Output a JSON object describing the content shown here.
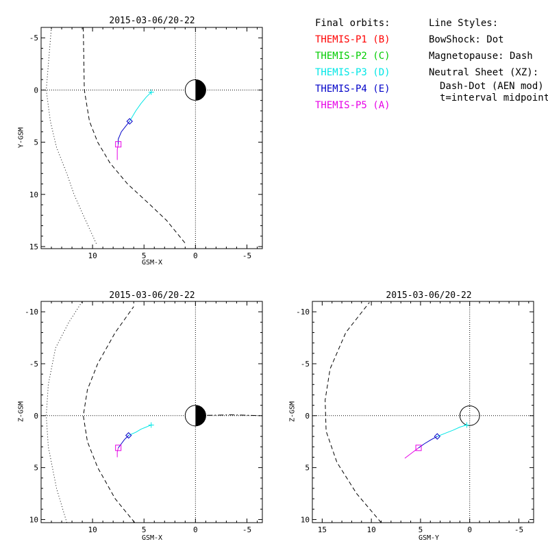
{
  "legend": {
    "orbits_title": "Final orbits:",
    "probes": [
      {
        "label": "THEMIS-P1 (B)",
        "color": "#ff0000"
      },
      {
        "label": "THEMIS-P2 (C)",
        "color": "#00cc00"
      },
      {
        "label": "THEMIS-P3 (D)",
        "color": "#00e6e6"
      },
      {
        "label": "THEMIS-P4 (E)",
        "color": "#0000c8"
      },
      {
        "label": "THEMIS-P5 (A)",
        "color": "#e600e6"
      }
    ],
    "styles_title": "Line Styles:",
    "styles": [
      "BowShock: Dot",
      "Magnetopause: Dash",
      "Neutral Sheet (XZ):"
    ],
    "styles_sub": [
      "Dash-Dot (AEN mod)",
      "t=interval midpoint"
    ]
  },
  "chart_data": [
    {
      "type": "line",
      "name": "xy",
      "title": "2015-03-06/20-22",
      "xlabel": "GSM-X",
      "ylabel": "Y-GSM",
      "xlim": [
        15,
        -6.5
      ],
      "ylim": [
        -6,
        15.2
      ],
      "xticks": [
        10,
        5,
        0,
        -5
      ],
      "yticks": [
        -5,
        0,
        5,
        10,
        15
      ],
      "grid": "dotted zero lines",
      "earth": true,
      "series": [
        {
          "color": "#00e6e6",
          "x": [
            4.3,
            4.8,
            5.3,
            5.8,
            6.4
          ],
          "y": [
            0.2,
            0.7,
            1.3,
            2.0,
            3.0
          ],
          "marker": "+",
          "marker_at": "start"
        },
        {
          "color": "#0000c8",
          "x": [
            6.4,
            6.8,
            7.2,
            7.5,
            7.5
          ],
          "y": [
            3.0,
            3.5,
            4.0,
            4.7,
            5.2
          ],
          "marker": "diamond",
          "marker_at": "start"
        },
        {
          "color": "#e600e6",
          "x": [
            7.5,
            7.6,
            7.6,
            7.6
          ],
          "y": [
            5.2,
            5.7,
            6.3,
            6.7
          ],
          "marker": "square",
          "marker_at": "start"
        }
      ],
      "boundaries": [
        {
          "style": "dash",
          "x": [
            10.9,
            10.8,
            10.3,
            9.5,
            8.3,
            6.6,
            4.4,
            2.8,
            0.9
          ],
          "y": [
            -6,
            0,
            3,
            5,
            7,
            9,
            11,
            12.5,
            14.8
          ]
        },
        {
          "style": "dot",
          "x": [
            14.0,
            14.5,
            14.1,
            13.5,
            12.5,
            11.8,
            10.9,
            9.6
          ],
          "y": [
            -6,
            0,
            3,
            5.5,
            8,
            10,
            12,
            14.8
          ]
        }
      ]
    },
    {
      "type": "line",
      "name": "xz",
      "title": "2015-03-06/20-22",
      "xlabel": "GSM-X",
      "ylabel": "Z-GSM",
      "xlim": [
        15,
        -6.5
      ],
      "ylim": [
        -11,
        10.3
      ],
      "xticks": [
        10,
        5,
        0,
        -5
      ],
      "yticks": [
        10,
        5,
        0,
        -5,
        -10
      ],
      "grid": "dotted zero lines",
      "earth": true,
      "series": [
        {
          "color": "#00e6e6",
          "x": [
            4.3,
            4.8,
            5.3,
            5.8,
            6.5
          ],
          "y": [
            0.9,
            1.1,
            1.3,
            1.6,
            1.9
          ],
          "marker": "+",
          "marker_at": "start"
        },
        {
          "color": "#0000c8",
          "x": [
            6.5,
            6.9,
            7.2,
            7.5
          ],
          "y": [
            1.9,
            2.3,
            2.7,
            3.1
          ],
          "marker": "diamond",
          "marker_at": "start"
        },
        {
          "color": "#e600e6",
          "x": [
            7.5,
            7.6,
            7.6
          ],
          "y": [
            3.1,
            3.5,
            4.0
          ],
          "marker": "square",
          "marker_at": "start"
        }
      ],
      "boundaries": [
        {
          "style": "dash",
          "x": [
            5.9,
            7.8,
            9.5,
            10.5,
            10.9,
            10.5,
            9.5,
            7.8,
            6.0
          ],
          "y": [
            10.3,
            8,
            5,
            2.5,
            0,
            -2.5,
            -5,
            -8,
            -10.5
          ]
        },
        {
          "style": "dot",
          "x": [
            12.5,
            13.5,
            14.3,
            14.5,
            14.3,
            13.6,
            12.3,
            11.0
          ],
          "y": [
            10.3,
            7,
            3,
            0,
            -3,
            -6.5,
            -9,
            -11
          ]
        },
        {
          "style": "dashdot",
          "x": [
            1.0,
            -1.5,
            -3.5,
            -6.5
          ],
          "y": [
            0.0,
            -0.04,
            -0.08,
            0.0
          ]
        }
      ]
    },
    {
      "type": "line",
      "name": "yz",
      "title": "2015-03-06/20-22",
      "xlabel": "GSM-Y",
      "ylabel": "Z-GSM",
      "xlim": [
        16,
        -6.5
      ],
      "ylim": [
        -11,
        10.3
      ],
      "xticks": [
        15,
        10,
        5,
        0,
        -5
      ],
      "yticks": [
        10,
        5,
        0,
        -5,
        -10
      ],
      "grid": "dotted zero lines",
      "earth": "outline",
      "series": [
        {
          "color": "#00e6e6",
          "x": [
            0.3,
            1.0,
            1.7,
            2.5,
            3.3
          ],
          "y": [
            0.9,
            1.1,
            1.4,
            1.7,
            2.0
          ],
          "marker": "+",
          "marker_at": "start"
        },
        {
          "color": "#0000c8",
          "x": [
            3.3,
            3.9,
            4.6,
            5.2
          ],
          "y": [
            2.0,
            2.3,
            2.7,
            3.1
          ],
          "marker": "diamond",
          "marker_at": "start"
        },
        {
          "color": "#e600e6",
          "x": [
            5.2,
            5.9,
            6.6
          ],
          "y": [
            3.1,
            3.6,
            4.1
          ],
          "marker": "square",
          "marker_at": "start"
        }
      ],
      "boundaries": [
        {
          "style": "dash",
          "x": [
            9.0,
            11.5,
            13.5,
            14.6,
            14.7,
            14.2,
            12.6,
            10.2
          ],
          "y": [
            10.3,
            7.5,
            4.5,
            1.5,
            -1.5,
            -4.5,
            -8,
            -10.9
          ]
        }
      ]
    }
  ]
}
